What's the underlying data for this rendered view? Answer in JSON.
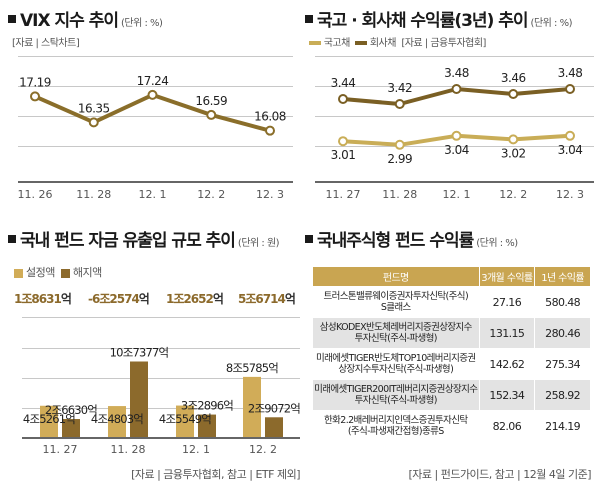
{
  "colors": {
    "vix_line": "#8a6e2a",
    "govt_bond": "#c9ad57",
    "corp_bond": "#7a5f24",
    "inflow": "#d1ac58",
    "outflow": "#8c6a2c",
    "table_header": "#c9a551",
    "grid": "#c8c8c8",
    "axis": "#666666"
  },
  "panels": {
    "vix": {
      "title": "VIX 지수 추이",
      "unit": "(단위 : %)",
      "source": "[자료 | 스탁차트]"
    },
    "bonds": {
      "title": "국고 · 회사채 수익률(3년) 추이",
      "unit": "(단위 : %)",
      "legend": [
        "국고채",
        "회사채"
      ],
      "source": "[자료 | 금융투자협회]"
    },
    "flows": {
      "title": "국내 펀드 자금 유출입 규모 추이",
      "unit": "(단위 : 원)",
      "legend": [
        "설정액",
        "해지액"
      ],
      "net": [
        {
          "a": "1",
          "b": "조",
          "c": "8631",
          "d": "억"
        },
        {
          "a": "-6",
          "b": "조",
          "c": "2574",
          "d": "억"
        },
        {
          "a": "1",
          "b": "조",
          "c": "2652",
          "d": "억"
        },
        {
          "a": "5",
          "b": "조",
          "c": "6714",
          "d": "억"
        }
      ],
      "source": "[자료 | 금융투자협회, 참고 | ETF 제외]"
    },
    "returns": {
      "title": "국내주식형 펀드 수익률",
      "unit": "(단위 : %)",
      "source": "[자료 | 펀드가이드, 참고 | 12월 4일 기준]"
    }
  },
  "chart_data": [
    {
      "id": "vix",
      "type": "line",
      "title": "VIX 지수 추이",
      "categories": [
        "11. 26",
        "11. 28",
        "12. 1",
        "12. 2",
        "12. 3"
      ],
      "series": [
        {
          "name": "VIX",
          "values": [
            17.19,
            16.35,
            17.24,
            16.59,
            16.08
          ]
        }
      ],
      "labels": [
        "17.19",
        "16.35",
        "17.24",
        "16.59",
        "16.08"
      ],
      "ylim": [
        15.0,
        18.5
      ],
      "grid": true,
      "xlabel": "",
      "ylabel": ""
    },
    {
      "id": "bonds",
      "type": "line",
      "title": "국고 · 회사채 수익률(3년) 추이",
      "categories": [
        "11. 27",
        "11. 28",
        "12. 1",
        "12. 2",
        "12. 3"
      ],
      "series": [
        {
          "name": "국고채",
          "values": [
            3.01,
            2.99,
            3.04,
            3.02,
            3.04
          ],
          "labels": [
            "3.01",
            "2.99",
            "3.04",
            "3.02",
            "3.04"
          ]
        },
        {
          "name": "회사채",
          "values": [
            3.44,
            3.42,
            3.48,
            3.46,
            3.48
          ],
          "labels": [
            "3.44",
            "3.42",
            "3.48",
            "3.46",
            "3.48"
          ]
        }
      ],
      "legend": "top-left",
      "grid": true,
      "xlabel": "",
      "ylabel": ""
    },
    {
      "id": "flows",
      "type": "bar",
      "title": "국내 펀드 자금 유출입 규모 추이",
      "categories": [
        "11. 27",
        "11. 28",
        "12. 1",
        "12. 2"
      ],
      "series": [
        {
          "name": "설정액",
          "values": [
            45261,
            44803,
            45549,
            85785
          ],
          "labels": [
            "4조5261억",
            "4조4803억",
            "4조5549억",
            "8조5785억"
          ]
        },
        {
          "name": "해지액",
          "values": [
            26630,
            107377,
            32896,
            29072
          ],
          "labels": [
            "2조6630억",
            "10조7377억",
            "3조2896억",
            "2조9072억"
          ]
        }
      ],
      "unit": "억원",
      "ylim": [
        0,
        120000
      ],
      "legend": "top-left",
      "grid": true,
      "xlabel": "",
      "ylabel": ""
    },
    {
      "id": "returns",
      "type": "table",
      "title": "국내주식형 펀드 수익률",
      "columns": [
        "펀드명",
        "3개월 수익률",
        "1년 수익률"
      ],
      "rows": [
        {
          "name": [
            "트러스톤밸류웨이증권자투자신탁(주식)",
            "S클래스"
          ],
          "m3": "27.16",
          "y1": "580.48"
        },
        {
          "name": [
            "삼성KODEX반도체레버리지증권상장지수",
            "투자신탁(주식-파생형)"
          ],
          "m3": "131.15",
          "y1": "280.46"
        },
        {
          "name": [
            "미래에셋TIGER반도체TOP10레버리지증권",
            "상장지수투자신탁(주식-파생형)"
          ],
          "m3": "142.62",
          "y1": "275.34"
        },
        {
          "name": [
            "미래에셋TIGER200IT레버리지증권상장지수",
            "투자신탁(주식-파생형)"
          ],
          "m3": "152.34",
          "y1": "258.92"
        },
        {
          "name": [
            "한화2.2배레버리지인덱스증권투자신탁",
            "(주식-파생재간접형)종류S"
          ],
          "m3": "82.06",
          "y1": "214.19"
        }
      ]
    }
  ]
}
